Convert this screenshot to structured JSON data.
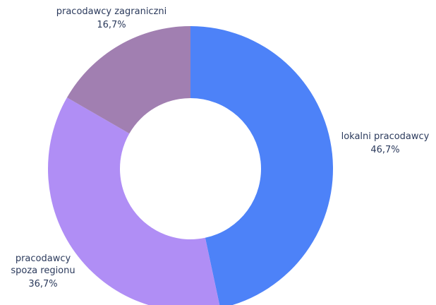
{
  "chart_data": {
    "type": "pie",
    "categories": [
      "lokalni pracodawcy",
      "pracodawcy spoza regionu",
      "pracodawcy zagraniczni"
    ],
    "values": [
      46.7,
      36.7,
      16.7
    ],
    "value_labels": [
      "46,7%",
      "36,7%",
      "16,7%"
    ],
    "colors": [
      "#4d82f8",
      "#b08ef5",
      "#a17fb1"
    ],
    "donut": true
  }
}
